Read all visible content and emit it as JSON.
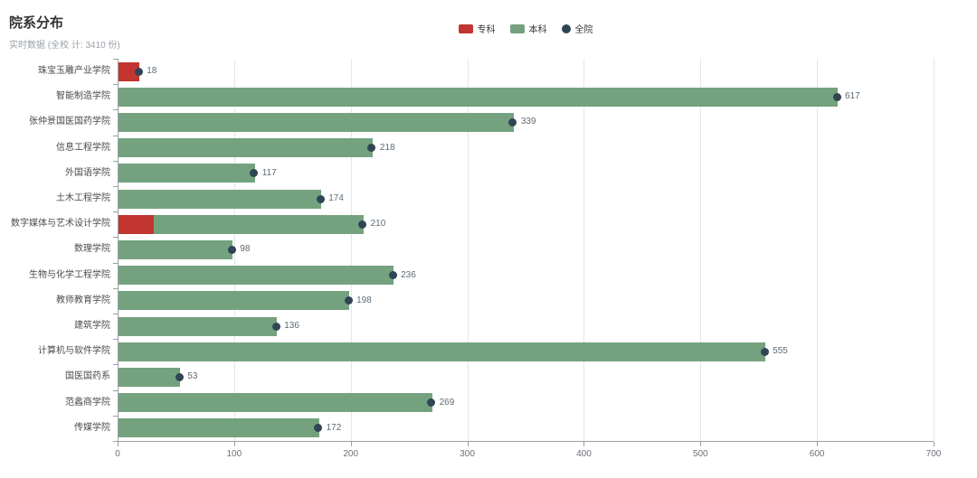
{
  "header": {
    "title": "院系分布",
    "subtitle": "实时数据 (全校 计: 3410 份)"
  },
  "legend": [
    {
      "key": "zk",
      "label": "专科",
      "color": "#c23531",
      "shape": "rect"
    },
    {
      "key": "bk",
      "label": "本科",
      "color": "#74a27f",
      "shape": "rect"
    },
    {
      "key": "qy",
      "label": "全院",
      "color": "#2f4554",
      "shape": "circle"
    }
  ],
  "colors": {
    "zhuanke_red": "#c23531",
    "benke_green": "#74a27f",
    "quanyuan_dark": "#2f4554",
    "grid": "#e6e6e6",
    "axis": "#9aa0a6"
  },
  "chart_data": {
    "type": "bar",
    "orientation": "horizontal",
    "stacked": true,
    "title": "院系分布",
    "subtitle": "实时数据 (全校 计: 3410 份)",
    "categories": [
      "珠宝玉雕产业学院",
      "智能制造学院",
      "张仲景国医国药学院",
      "信息工程学院",
      "外国语学院",
      "土木工程学院",
      "数字媒体与艺术设计学院",
      "数理学院",
      "生物与化学工程学院",
      "教师教育学院",
      "建筑学院",
      "计算机与软件学院",
      "国医国药系",
      "范蠡商学院",
      "传媒学院"
    ],
    "series": [
      {
        "name": "专科",
        "key": "zk",
        "type": "bar",
        "color": "#c23531",
        "values": [
          18,
          0,
          0,
          0,
          0,
          0,
          30,
          0,
          0,
          0,
          0,
          0,
          0,
          0,
          0
        ]
      },
      {
        "name": "本科",
        "key": "bk",
        "type": "bar",
        "color": "#74a27f",
        "values": [
          0,
          617,
          339,
          218,
          117,
          174,
          180,
          98,
          236,
          198,
          136,
          555,
          53,
          269,
          172
        ]
      },
      {
        "name": "全院",
        "key": "qy",
        "type": "scatter",
        "color": "#2f4554",
        "values": [
          18,
          617,
          339,
          218,
          117,
          174,
          210,
          98,
          236,
          198,
          136,
          555,
          53,
          269,
          172
        ]
      }
    ],
    "totals": [
      18,
      617,
      339,
      218,
      117,
      174,
      210,
      98,
      236,
      198,
      136,
      555,
      53,
      269,
      172
    ],
    "grand_total": 3410,
    "xlabel": "",
    "ylabel": "",
    "xlim": [
      0,
      700
    ],
    "x_ticks": [
      0,
      100,
      200,
      300,
      400,
      500,
      600,
      700
    ],
    "grid": true,
    "legend_position": "top-center"
  }
}
